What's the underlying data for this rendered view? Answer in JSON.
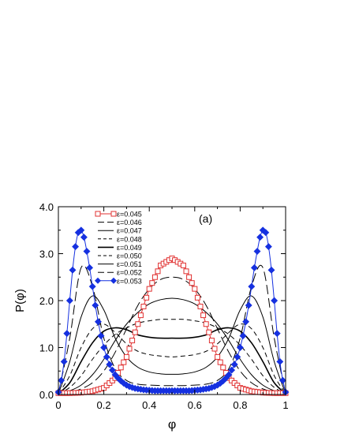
{
  "chart_data": {
    "type": "line",
    "panel_label": "(a)",
    "xlabel": "φ",
    "ylabel": "P(φ)",
    "xlim": [
      0,
      1
    ],
    "ylim": [
      0,
      4
    ],
    "x_ticks": [
      "0",
      "0.2",
      "0.4",
      "0.6",
      "0.8",
      "1"
    ],
    "y_ticks": [
      "0.0",
      "1.0",
      "2.0",
      "3.0",
      "4.0"
    ],
    "grid": false,
    "legend_position": "top-left",
    "series": [
      {
        "name": "ε=0.045",
        "color": "#e03030",
        "style": "line+open-squares",
        "x": [
          0,
          0.05,
          0.1,
          0.15,
          0.2,
          0.25,
          0.3,
          0.35,
          0.4,
          0.45,
          0.5,
          0.55,
          0.6,
          0.65,
          0.7,
          0.75,
          0.8,
          0.85,
          0.9,
          0.95,
          1
        ],
        "y": [
          0.03,
          0.03,
          0.04,
          0.07,
          0.14,
          0.35,
          0.8,
          1.5,
          2.25,
          2.75,
          2.9,
          2.75,
          2.25,
          1.5,
          0.8,
          0.35,
          0.14,
          0.07,
          0.04,
          0.03,
          0.03
        ]
      },
      {
        "name": "ε=0.046",
        "color": "#000000",
        "style": "long-dash",
        "x": [
          0,
          0.05,
          0.1,
          0.15,
          0.2,
          0.25,
          0.3,
          0.35,
          0.4,
          0.45,
          0.5,
          0.55,
          0.6,
          0.65,
          0.7,
          0.75,
          0.8,
          0.85,
          0.9,
          0.95,
          1
        ],
        "y": [
          0.02,
          0.05,
          0.12,
          0.25,
          0.5,
          0.9,
          1.4,
          1.9,
          2.25,
          2.45,
          2.5,
          2.45,
          2.25,
          1.9,
          1.4,
          0.9,
          0.5,
          0.25,
          0.12,
          0.05,
          0.02
        ]
      },
      {
        "name": "ε=0.047",
        "color": "#000000",
        "style": "solid",
        "x": [
          0,
          0.05,
          0.1,
          0.15,
          0.2,
          0.25,
          0.3,
          0.35,
          0.4,
          0.45,
          0.5,
          0.55,
          0.6,
          0.65,
          0.7,
          0.75,
          0.8,
          0.85,
          0.9,
          0.95,
          1
        ],
        "y": [
          0.02,
          0.08,
          0.2,
          0.42,
          0.75,
          1.15,
          1.5,
          1.75,
          1.93,
          2.02,
          2.05,
          2.02,
          1.93,
          1.75,
          1.5,
          1.15,
          0.75,
          0.42,
          0.2,
          0.08,
          0.02
        ]
      },
      {
        "name": "ε=0.048",
        "color": "#000000",
        "style": "dashed",
        "x": [
          0,
          0.05,
          0.1,
          0.15,
          0.2,
          0.25,
          0.3,
          0.35,
          0.4,
          0.45,
          0.5,
          0.55,
          0.6,
          0.65,
          0.7,
          0.75,
          0.8,
          0.85,
          0.9,
          0.95,
          1
        ],
        "y": [
          0.02,
          0.15,
          0.4,
          0.75,
          1.05,
          1.28,
          1.42,
          1.52,
          1.57,
          1.6,
          1.6,
          1.6,
          1.57,
          1.52,
          1.42,
          1.28,
          1.05,
          0.75,
          0.4,
          0.15,
          0.02
        ]
      },
      {
        "name": "ε=0.049",
        "color": "#000000",
        "style": "solid-bold",
        "x": [
          0,
          0.05,
          0.1,
          0.15,
          0.2,
          0.25,
          0.3,
          0.35,
          0.4,
          0.45,
          0.5,
          0.55,
          0.6,
          0.65,
          0.7,
          0.75,
          0.8,
          0.85,
          0.9,
          0.95,
          1
        ],
        "y": [
          0.02,
          0.25,
          0.7,
          1.1,
          1.35,
          1.42,
          1.38,
          1.27,
          1.22,
          1.2,
          1.2,
          1.2,
          1.22,
          1.27,
          1.38,
          1.42,
          1.35,
          1.1,
          0.7,
          0.25,
          0.02
        ]
      },
      {
        "name": "ε=0.050",
        "color": "#000000",
        "style": "dashed",
        "x": [
          0,
          0.05,
          0.1,
          0.15,
          0.2,
          0.25,
          0.3,
          0.35,
          0.4,
          0.45,
          0.5,
          0.55,
          0.6,
          0.65,
          0.7,
          0.75,
          0.8,
          0.85,
          0.9,
          0.95,
          1
        ],
        "y": [
          0.02,
          0.4,
          1.0,
          1.4,
          1.5,
          1.32,
          1.08,
          0.92,
          0.85,
          0.82,
          0.8,
          0.82,
          0.85,
          0.92,
          1.08,
          1.32,
          1.5,
          1.4,
          1.0,
          0.4,
          0.02
        ]
      },
      {
        "name": "ε=0.051",
        "color": "#000000",
        "style": "solid",
        "x": [
          0,
          0.05,
          0.1,
          0.15,
          0.2,
          0.25,
          0.3,
          0.35,
          0.4,
          0.45,
          0.5,
          0.55,
          0.6,
          0.65,
          0.7,
          0.75,
          0.8,
          0.85,
          0.9,
          0.95,
          1
        ],
        "y": [
          0.02,
          0.7,
          1.65,
          2.1,
          1.8,
          1.2,
          0.8,
          0.58,
          0.48,
          0.44,
          0.43,
          0.44,
          0.48,
          0.58,
          0.8,
          1.2,
          1.8,
          2.1,
          1.65,
          0.7,
          0.02
        ]
      },
      {
        "name": "ε=0.052",
        "color": "#000000",
        "style": "long-dash",
        "x": [
          0,
          0.05,
          0.1,
          0.15,
          0.2,
          0.25,
          0.3,
          0.35,
          0.4,
          0.45,
          0.5,
          0.55,
          0.6,
          0.65,
          0.7,
          0.75,
          0.8,
          0.85,
          0.9,
          0.95,
          1
        ],
        "y": [
          0.02,
          1.2,
          2.7,
          2.3,
          1.2,
          0.55,
          0.3,
          0.22,
          0.2,
          0.19,
          0.19,
          0.19,
          0.2,
          0.22,
          0.3,
          0.55,
          1.2,
          2.3,
          2.7,
          1.2,
          0.02
        ]
      },
      {
        "name": "ε=0.053",
        "color": "#1530e0",
        "style": "line+filled-diamonds",
        "x": [
          0,
          0.0125,
          0.025,
          0.0375,
          0.05,
          0.0625,
          0.075,
          0.0875,
          0.1,
          0.1125,
          0.125,
          0.1375,
          0.15,
          0.1625,
          0.175,
          0.1875,
          0.2,
          0.2125,
          0.225,
          0.2375,
          0.25,
          0.2625,
          0.275,
          0.2875,
          0.3,
          0.3125,
          0.325,
          0.3375,
          0.35,
          0.3625,
          0.375,
          0.3875,
          0.4,
          0.4125,
          0.425,
          0.4375,
          0.45,
          0.4625,
          0.475,
          0.4875,
          0.5,
          0.5125,
          0.525,
          0.5375,
          0.55,
          0.5625,
          0.575,
          0.5875,
          0.6,
          0.6125,
          0.625,
          0.6375,
          0.65,
          0.6625,
          0.675,
          0.6875,
          0.7,
          0.7125,
          0.725,
          0.7375,
          0.75,
          0.7625,
          0.775,
          0.7875,
          0.8,
          0.8125,
          0.825,
          0.8375,
          0.85,
          0.8625,
          0.875,
          0.8875,
          0.9,
          0.9125,
          0.925,
          0.9375,
          0.95,
          0.9625,
          0.975,
          0.9875,
          1
        ],
        "y": [
          0.05,
          0.3,
          0.7,
          1.3,
          2.0,
          2.65,
          3.15,
          3.45,
          3.5,
          3.35,
          3.05,
          2.7,
          2.3,
          1.9,
          1.55,
          1.25,
          1.0,
          0.8,
          0.64,
          0.52,
          0.42,
          0.35,
          0.29,
          0.24,
          0.2,
          0.17,
          0.15,
          0.13,
          0.12,
          0.11,
          0.1,
          0.095,
          0.09,
          0.085,
          0.08,
          0.08,
          0.08,
          0.08,
          0.08,
          0.08,
          0.08,
          0.08,
          0.08,
          0.08,
          0.08,
          0.08,
          0.08,
          0.085,
          0.09,
          0.095,
          0.1,
          0.11,
          0.12,
          0.13,
          0.15,
          0.17,
          0.2,
          0.24,
          0.29,
          0.35,
          0.42,
          0.52,
          0.64,
          0.8,
          1.0,
          1.25,
          1.55,
          1.9,
          2.3,
          2.7,
          3.05,
          3.35,
          3.5,
          3.45,
          3.15,
          2.65,
          2.0,
          1.3,
          0.7,
          0.3,
          0.05
        ]
      }
    ]
  }
}
